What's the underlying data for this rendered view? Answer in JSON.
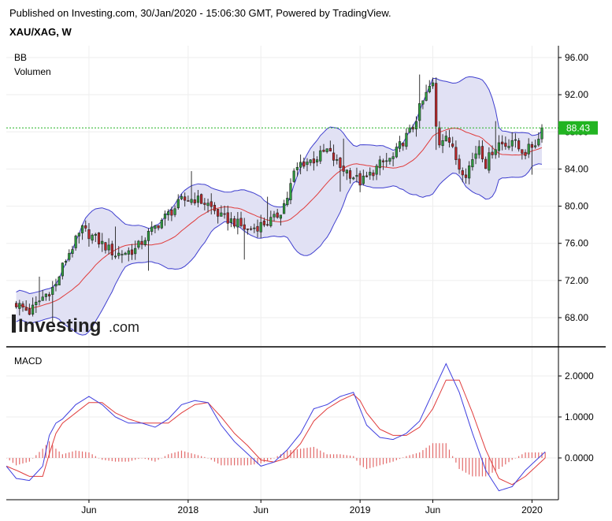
{
  "header": {
    "published": "Published on Investing.com, 30/Jan/2020 - 15:06:30 GMT, Powered by TradingView.",
    "symbol": "XAU/XAG, W"
  },
  "indicators": {
    "top": [
      "BB",
      "Volumen"
    ],
    "bottom": "MACD"
  },
  "logo": {
    "word": "Investing",
    "suffix": ".com"
  },
  "colors": {
    "up": "#2e9e3f",
    "down": "#c0262a",
    "bb_band": "#3f3fcf",
    "bb_fill": "#e1e1f4",
    "bb_basis": "#e03c3c",
    "macd": "#3f3fdf",
    "signal": "#e03c3c",
    "hist": "#e26a6a",
    "last_price": "#22b422"
  },
  "chart_data": [
    {
      "type": "candlestick",
      "title": "XAU/XAG, W",
      "last_price": "88.43",
      "last_value": 88.43,
      "yticks": [
        "96.00",
        "92.00",
        "88.00",
        "84.00",
        "80.00",
        "76.00",
        "72.00",
        "68.00"
      ],
      "ytick_values": [
        96,
        92,
        88,
        84,
        80,
        76,
        72,
        68
      ],
      "ylim": [
        65.5,
        97.5
      ],
      "x_labels": [
        "Jun",
        "2018",
        "Jun",
        "2019",
        "Jun",
        "2020"
      ],
      "x_label_weeks": [
        22,
        52,
        74,
        104,
        126,
        156
      ],
      "week_range": [
        -3,
        164
      ],
      "grid": true,
      "anchors": [
        [
          0,
          69.5
        ],
        [
          4,
          68.6
        ],
        [
          8,
          70.2
        ],
        [
          12,
          71.5
        ],
        [
          14,
          73.5
        ],
        [
          16,
          75
        ],
        [
          20,
          77.5
        ],
        [
          24,
          76.5
        ],
        [
          30,
          74.8
        ],
        [
          36,
          75.3
        ],
        [
          40,
          77
        ],
        [
          44,
          78.5
        ],
        [
          48,
          79.8
        ],
        [
          50,
          80.6
        ],
        [
          54,
          80.8
        ],
        [
          58,
          80.2
        ],
        [
          62,
          78.8
        ],
        [
          66,
          78.3
        ],
        [
          70,
          77.4
        ],
        [
          74,
          78
        ],
        [
          78,
          78.6
        ],
        [
          80,
          79.5
        ],
        [
          82,
          81
        ],
        [
          84,
          83.5
        ],
        [
          86,
          84.6
        ],
        [
          90,
          85
        ],
        [
          94,
          86
        ],
        [
          98,
          84.2
        ],
        [
          100,
          83.8
        ],
        [
          104,
          82.6
        ],
        [
          106,
          83
        ],
        [
          110,
          84.5
        ],
        [
          114,
          85.2
        ],
        [
          116,
          86.5
        ],
        [
          118,
          87.5
        ],
        [
          120,
          88.5
        ],
        [
          122,
          90.5
        ],
        [
          124,
          92
        ],
        [
          125,
          92.8
        ],
        [
          126,
          93
        ],
        [
          127,
          88.5
        ],
        [
          128,
          86.8
        ],
        [
          130,
          88
        ],
        [
          132,
          86
        ],
        [
          134,
          84.2
        ],
        [
          136,
          83.6
        ],
        [
          138,
          85
        ],
        [
          140,
          86.6
        ],
        [
          142,
          84.5
        ],
        [
          144,
          86
        ],
        [
          146,
          86.8
        ],
        [
          148,
          86.6
        ],
        [
          150,
          87.2
        ],
        [
          152,
          86.2
        ],
        [
          154,
          85.8
        ],
        [
          156,
          86.5
        ],
        [
          158,
          87.2
        ],
        [
          159,
          88.4
        ]
      ]
    },
    {
      "type": "macd",
      "title": "MACD",
      "yticks": [
        "2.0000",
        "1.0000",
        "0.0000"
      ],
      "ytick_values": [
        2,
        1,
        0
      ],
      "ylim": [
        -1.1,
        2.5
      ],
      "macd_points": [
        [
          -3,
          -0.2
        ],
        [
          0,
          -0.5
        ],
        [
          4,
          -0.55
        ],
        [
          8,
          -0.2
        ],
        [
          10,
          0.55
        ],
        [
          12,
          0.85
        ],
        [
          14,
          0.95
        ],
        [
          18,
          1.3
        ],
        [
          22,
          1.5
        ],
        [
          26,
          1.3
        ],
        [
          30,
          1.0
        ],
        [
          34,
          0.85
        ],
        [
          38,
          0.85
        ],
        [
          42,
          0.75
        ],
        [
          46,
          0.95
        ],
        [
          50,
          1.3
        ],
        [
          54,
          1.4
        ],
        [
          58,
          1.35
        ],
        [
          62,
          0.8
        ],
        [
          66,
          0.4
        ],
        [
          70,
          0.1
        ],
        [
          74,
          -0.2
        ],
        [
          78,
          -0.1
        ],
        [
          82,
          0.2
        ],
        [
          86,
          0.6
        ],
        [
          90,
          1.2
        ],
        [
          94,
          1.3
        ],
        [
          98,
          1.5
        ],
        [
          102,
          1.6
        ],
        [
          104,
          1.2
        ],
        [
          106,
          0.8
        ],
        [
          110,
          0.5
        ],
        [
          114,
          0.45
        ],
        [
          118,
          0.6
        ],
        [
          122,
          0.9
        ],
        [
          126,
          1.6
        ],
        [
          130,
          2.3
        ],
        [
          134,
          1.6
        ],
        [
          138,
          0.6
        ],
        [
          142,
          -0.3
        ],
        [
          146,
          -0.8
        ],
        [
          150,
          -0.7
        ],
        [
          154,
          -0.3
        ],
        [
          158,
          0.0
        ],
        [
          160,
          0.15
        ]
      ],
      "signal_points": [
        [
          -3,
          -0.2
        ],
        [
          0,
          -0.3
        ],
        [
          4,
          -0.45
        ],
        [
          8,
          -0.45
        ],
        [
          10,
          0.1
        ],
        [
          12,
          0.6
        ],
        [
          14,
          0.85
        ],
        [
          18,
          1.1
        ],
        [
          22,
          1.35
        ],
        [
          26,
          1.35
        ],
        [
          30,
          1.1
        ],
        [
          34,
          0.95
        ],
        [
          38,
          0.85
        ],
        [
          42,
          0.85
        ],
        [
          46,
          0.85
        ],
        [
          50,
          1.1
        ],
        [
          54,
          1.3
        ],
        [
          58,
          1.35
        ],
        [
          62,
          1.0
        ],
        [
          66,
          0.6
        ],
        [
          70,
          0.3
        ],
        [
          74,
          -0.05
        ],
        [
          78,
          -0.1
        ],
        [
          82,
          0.0
        ],
        [
          86,
          0.35
        ],
        [
          90,
          0.9
        ],
        [
          94,
          1.2
        ],
        [
          98,
          1.4
        ],
        [
          102,
          1.55
        ],
        [
          104,
          1.4
        ],
        [
          106,
          1.1
        ],
        [
          110,
          0.7
        ],
        [
          114,
          0.55
        ],
        [
          118,
          0.55
        ],
        [
          122,
          0.75
        ],
        [
          126,
          1.2
        ],
        [
          130,
          1.9
        ],
        [
          134,
          1.9
        ],
        [
          138,
          1.1
        ],
        [
          142,
          0.2
        ],
        [
          146,
          -0.5
        ],
        [
          150,
          -0.65
        ],
        [
          154,
          -0.45
        ],
        [
          158,
          -0.15
        ],
        [
          160,
          0.0
        ]
      ]
    }
  ]
}
